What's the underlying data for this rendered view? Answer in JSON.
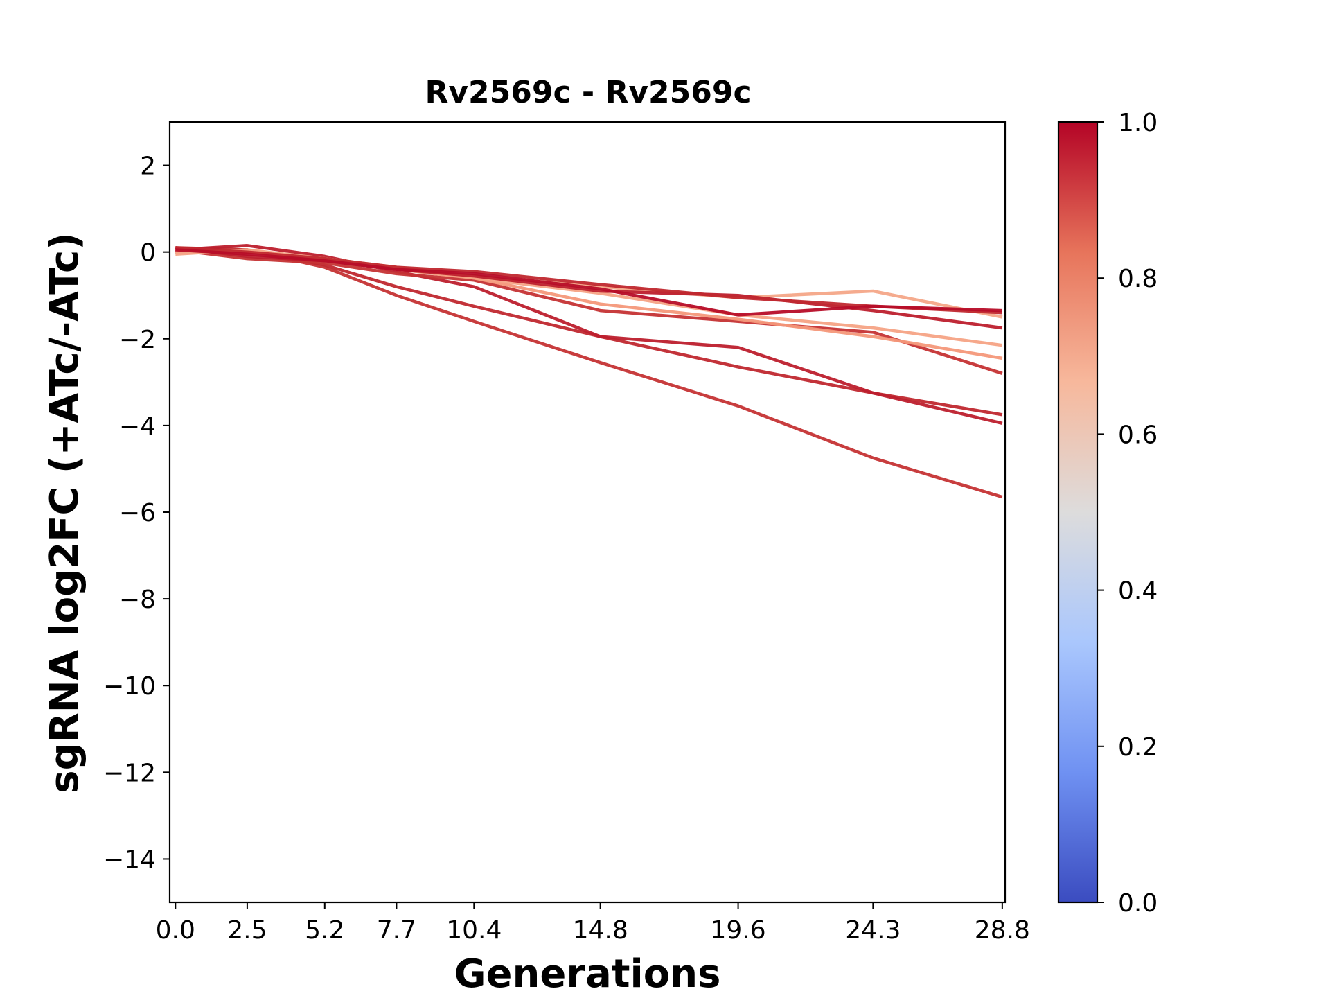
{
  "chart_data": {
    "type": "line",
    "title": "Rv2569c - Rv2569c",
    "xlabel": "Generations",
    "ylabel": "sgRNA log2FC (+ATc/-ATc)",
    "x": [
      0.0,
      2.5,
      5.2,
      7.7,
      10.4,
      14.8,
      19.6,
      24.3,
      28.8
    ],
    "x_tick_labels": [
      "0.0",
      "2.5",
      "5.2",
      "7.7",
      "10.4",
      "14.8",
      "19.6",
      "24.3",
      "28.8"
    ],
    "xlim": [
      -0.2,
      28.9
    ],
    "ylim": [
      -15,
      3
    ],
    "y_ticks": [
      2,
      0,
      -2,
      -4,
      -6,
      -8,
      -10,
      -12,
      -14
    ],
    "y_tick_labels": [
      "2",
      "0",
      "−2",
      "−4",
      "−6",
      "−8",
      "−10",
      "−12",
      "−14"
    ],
    "grid": false,
    "colorbar": {
      "colormap": "coolwarm",
      "range": [
        0.0,
        1.0
      ],
      "ticks": [
        0.0,
        0.2,
        0.4,
        0.6,
        0.8,
        1.0
      ],
      "tick_labels": [
        "0.0",
        "0.2",
        "0.4",
        "0.6",
        "0.8",
        "1.0"
      ],
      "stops": [
        "#3b4cc0",
        "#6f91f2",
        "#aac7fd",
        "#dddcdc",
        "#f7b89c",
        "#e7745b",
        "#b40426"
      ]
    },
    "series": [
      {
        "color": "#c53334",
        "values": [
          0.1,
          0.05,
          -0.35,
          -1.0,
          -1.6,
          -2.55,
          -3.55,
          -4.75,
          -5.65
        ]
      },
      {
        "color": "#c0282f",
        "values": [
          0.0,
          0.05,
          -0.3,
          -0.8,
          -1.25,
          -1.95,
          -2.65,
          -3.25,
          -3.75
        ]
      },
      {
        "color": "#bd1f2d",
        "values": [
          0.05,
          0.15,
          -0.1,
          -0.45,
          -0.8,
          -1.95,
          -2.2,
          -3.25,
          -3.95
        ]
      },
      {
        "color": "#c53334",
        "values": [
          0.05,
          -0.15,
          -0.25,
          -0.5,
          -0.65,
          -1.35,
          -1.6,
          -1.85,
          -2.8
        ]
      },
      {
        "color": "#f4987a",
        "values": [
          0.0,
          0.0,
          -0.2,
          -0.4,
          -0.6,
          -1.2,
          -1.55,
          -1.95,
          -2.45
        ]
      },
      {
        "color": "#f6a385",
        "values": [
          -0.05,
          0.05,
          -0.15,
          -0.35,
          -0.6,
          -0.95,
          -1.45,
          -1.75,
          -2.15
        ]
      },
      {
        "color": "#f4a688",
        "values": [
          0.0,
          0.0,
          -0.15,
          -0.35,
          -0.55,
          -0.8,
          -1.05,
          -0.9,
          -1.5
        ]
      },
      {
        "color": "#bd1f2d",
        "values": [
          0.1,
          -0.1,
          -0.2,
          -0.4,
          -0.55,
          -0.9,
          -1.0,
          -1.35,
          -1.75
        ]
      },
      {
        "color": "#c0282f",
        "values": [
          0.1,
          0.0,
          -0.15,
          -0.35,
          -0.45,
          -0.75,
          -1.05,
          -1.25,
          -1.4
        ]
      },
      {
        "color": "#b70d28",
        "values": [
          0.05,
          -0.05,
          -0.2,
          -0.4,
          -0.5,
          -0.85,
          -1.45,
          -1.25,
          -1.35
        ]
      }
    ]
  }
}
